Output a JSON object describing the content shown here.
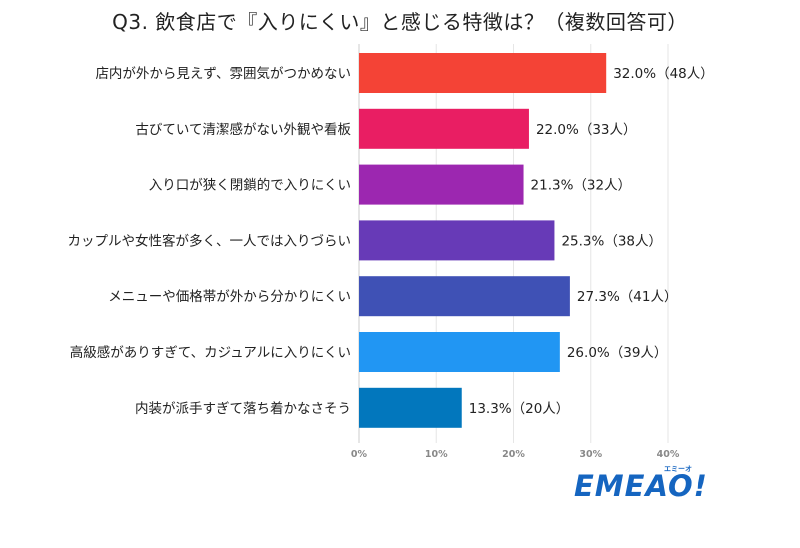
{
  "chart_data": {
    "type": "bar",
    "orientation": "horizontal",
    "title": "Q3. 飲食店で『入りにくい』と感じる特徴は？（複数回答可）",
    "categories": [
      "店内が外から見えず、雰囲気がつかめない",
      "古びていて清潔感がない外観や看板",
      "入り口が狭く閉鎖的で入りにくい",
      "カップルや女性客が多く、一人では入りづらい",
      "メニューや価格帯が外から分かりにくい",
      "高級感がありすぎて、カジュアルに入りにくい",
      "内装が派手すぎて落ち着かなさそう"
    ],
    "values": [
      32.0,
      22.0,
      21.3,
      25.3,
      27.3,
      26.0,
      13.3
    ],
    "value_labels": [
      "32.0%（48人）",
      "22.0%（33人）",
      "21.3%（32人）",
      "25.3%（38人）",
      "27.3%（41人）",
      "26.0%（39人）",
      "13.3%（20人）"
    ],
    "colors": [
      "#f44336",
      "#e91e63",
      "#9c27b0",
      "#673ab7",
      "#3f51b5",
      "#2196f3",
      "#0277bd"
    ],
    "xlim": [
      0,
      40
    ],
    "x_ticks": [
      0,
      10,
      20,
      30,
      40
    ],
    "x_tick_labels": [
      "0%",
      "10%",
      "20%",
      "30%",
      "40%"
    ],
    "grid": true,
    "legend": "none"
  },
  "logo": {
    "text": "EMEAO!",
    "subtext": "エミーオ",
    "color": "#1565c0",
    "accent": "#f9a825"
  }
}
